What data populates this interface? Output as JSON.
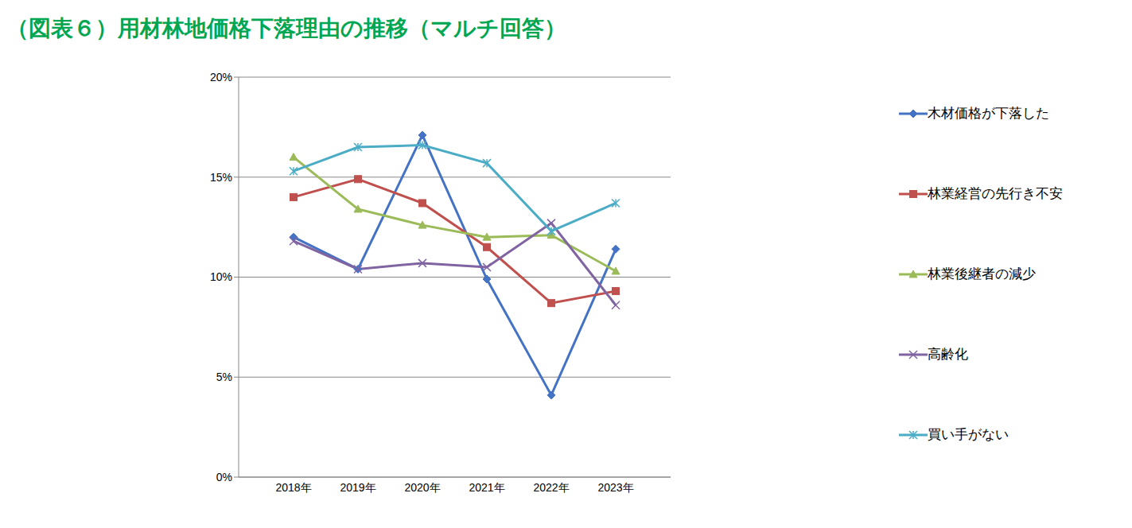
{
  "chart_data": {
    "type": "line",
    "title": "（図表６）用材林地価格下落理由の推移（マルチ回答）",
    "categories": [
      "2018年",
      "2019年",
      "2020年",
      "2021年",
      "2022年",
      "2023年"
    ],
    "series": [
      {
        "name": "木材価格が下落した",
        "color": "#4472c4",
        "marker": "diamond",
        "values": [
          12.0,
          10.4,
          17.1,
          9.9,
          4.1,
          11.4
        ]
      },
      {
        "name": "林業経営の先行き不安",
        "color": "#c0504d",
        "marker": "square",
        "values": [
          14.0,
          14.9,
          13.7,
          11.5,
          8.7,
          9.3
        ]
      },
      {
        "name": "林業後継者の減少",
        "color": "#9bbb59",
        "marker": "triangle",
        "values": [
          16.0,
          13.4,
          12.6,
          12.0,
          12.1,
          10.3
        ]
      },
      {
        "name": "高齢化",
        "color": "#8064a2",
        "marker": "x",
        "values": [
          11.8,
          10.4,
          10.7,
          10.5,
          12.7,
          8.6
        ]
      },
      {
        "name": "買い手がない",
        "color": "#4bacc6",
        "marker": "star",
        "values": [
          15.3,
          16.5,
          16.6,
          15.7,
          12.3,
          13.7
        ]
      }
    ],
    "ylim": [
      0,
      20
    ],
    "yticks": [
      {
        "value": 0,
        "label": "0%"
      },
      {
        "value": 5,
        "label": "5%"
      },
      {
        "value": 10,
        "label": "10%"
      },
      {
        "value": 15,
        "label": "15%"
      },
      {
        "value": 20,
        "label": "20%"
      }
    ],
    "grid": true,
    "legend": "right"
  }
}
